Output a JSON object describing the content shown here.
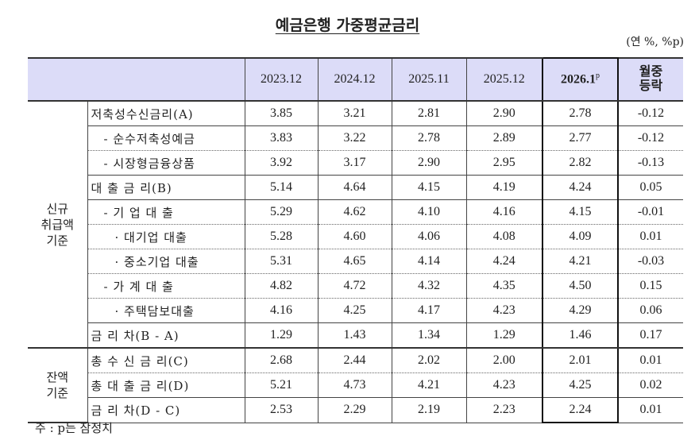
{
  "title": "예금은행 가중평균금리",
  "unit": "(연 %, %p)",
  "header": {
    "columns": [
      "2023.12",
      "2024.12",
      "2025.11",
      "2025.12",
      "2026.1",
      "월중 등락"
    ],
    "provisional_mark": "p"
  },
  "groups": [
    {
      "label": "신규 취급액 기준",
      "rows": [
        {
          "label": "저축성수신금리(A)",
          "values": [
            "3.85",
            "3.21",
            "2.81",
            "2.90",
            "2.78",
            "-0.12"
          ]
        },
        {
          "label": "- 순수저축성예금",
          "values": [
            "3.83",
            "3.22",
            "2.78",
            "2.89",
            "2.77",
            "-0.12"
          ]
        },
        {
          "label": "- 시장형금융상품",
          "values": [
            "3.92",
            "3.17",
            "2.90",
            "2.95",
            "2.82",
            "-0.13"
          ]
        },
        {
          "label": "대 출 금 리(B)",
          "values": [
            "5.14",
            "4.64",
            "4.15",
            "4.19",
            "4.24",
            "0.05"
          ]
        },
        {
          "label": "- 기 업 대 출",
          "values": [
            "5.29",
            "4.62",
            "4.10",
            "4.16",
            "4.15",
            "-0.01"
          ]
        },
        {
          "label": "· 대기업 대출",
          "values": [
            "5.28",
            "4.60",
            "4.06",
            "4.08",
            "4.09",
            "0.01"
          ]
        },
        {
          "label": "· 중소기업 대출",
          "values": [
            "5.31",
            "4.65",
            "4.14",
            "4.24",
            "4.21",
            "-0.03"
          ]
        },
        {
          "label": "- 가 계 대 출",
          "values": [
            "4.82",
            "4.72",
            "4.32",
            "4.35",
            "4.50",
            "0.15"
          ]
        },
        {
          "label": "· 주택담보대출",
          "values": [
            "4.16",
            "4.25",
            "4.17",
            "4.23",
            "4.29",
            "0.06"
          ]
        },
        {
          "label": "금 리 차(B - A)",
          "values": [
            "1.29",
            "1.43",
            "1.34",
            "1.29",
            "1.46",
            "0.17"
          ]
        }
      ]
    },
    {
      "label": "잔액 기준",
      "rows": [
        {
          "label": "총 수 신 금 리(C)",
          "values": [
            "2.68",
            "2.44",
            "2.02",
            "2.00",
            "2.01",
            "0.01"
          ]
        },
        {
          "label": "총 대 출 금 리(D)",
          "values": [
            "5.21",
            "4.73",
            "4.21",
            "4.23",
            "4.25",
            "0.02"
          ]
        },
        {
          "label": "금 리 차(D - C)",
          "values": [
            "2.53",
            "2.29",
            "2.19",
            "2.23",
            "2.24",
            "0.01"
          ]
        }
      ]
    }
  ],
  "note": "주 : p는 잠정치"
}
